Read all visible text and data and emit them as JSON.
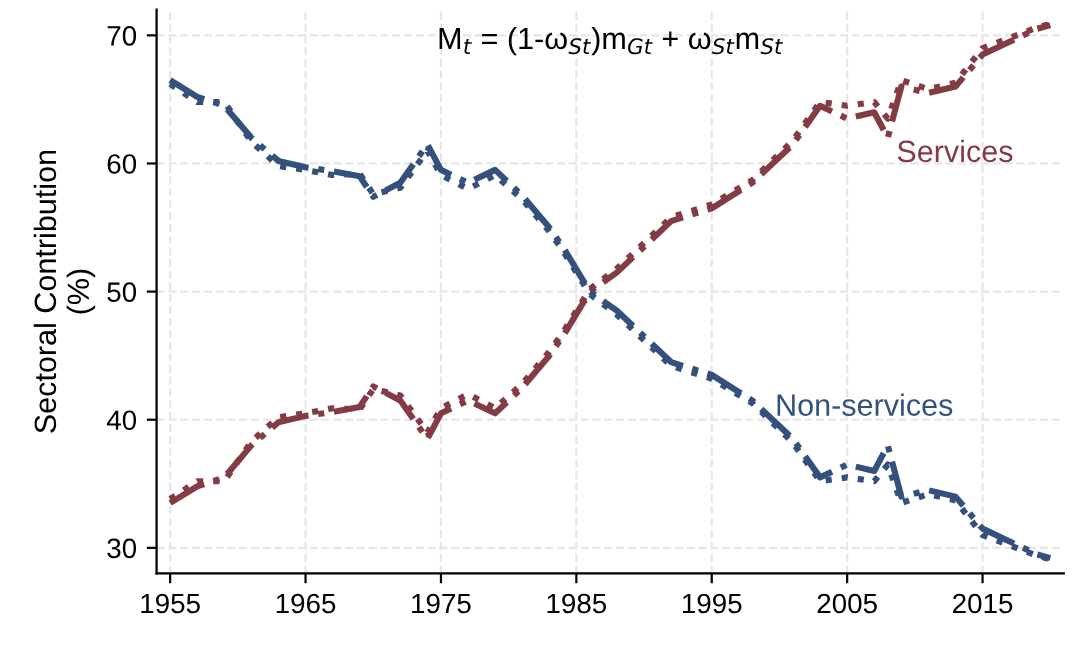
{
  "chart_data": {
    "type": "line",
    "ylabel": "Sectoral Contribution\n(%)",
    "annotations": [
      "M$_{t}$ = (1-ω$_{St}$)m$_{Gt}$ + ω$_{St}$m$_{St}$"
    ],
    "x": [
      1955,
      1957,
      1959,
      1961,
      1963,
      1965,
      1967,
      1969,
      1970,
      1972,
      1974,
      1975,
      1977,
      1979,
      1981,
      1983,
      1984,
      1986,
      1988,
      1990,
      1992,
      1995,
      1998,
      2001,
      2003,
      2005,
      2007,
      2008,
      2009,
      2011,
      2013,
      2015,
      2017,
      2019,
      2020
    ],
    "series": [
      {
        "name": "Services",
        "color": "#843c44",
        "line_style": "dashdot",
        "values": [
          33.5,
          34.8,
          35.5,
          38,
          39.8,
          40.3,
          40.6,
          41,
          42.6,
          41.5,
          38.5,
          40.5,
          41.5,
          40.5,
          42.5,
          45,
          46.5,
          50,
          51.5,
          53.5,
          55.5,
          56.5,
          58.5,
          61.5,
          64.5,
          63.5,
          64,
          62,
          66,
          65.5,
          66,
          68.5,
          69.5,
          70.5,
          70.8
        ]
      },
      {
        "color": "#843c44",
        "line_style": "dotted",
        "values": [
          33.8,
          35.2,
          35.2,
          38.3,
          40.2,
          40.5,
          40.9,
          40.8,
          42.4,
          41.9,
          39,
          40.9,
          42,
          40.9,
          42.8,
          45.3,
          46.8,
          50.2,
          51.8,
          53.8,
          55.8,
          56.8,
          58.7,
          61.8,
          64.8,
          64.5,
          64.8,
          63.5,
          66.5,
          65.8,
          66.3,
          69,
          69.8,
          70.6,
          70.9
        ]
      },
      {
        "name": "Non-services",
        "color": "#34507c",
        "line_style": "dashdot",
        "values": [
          66.5,
          65.2,
          64.5,
          62,
          60.2,
          59.7,
          59.4,
          59,
          57.4,
          58.5,
          61.5,
          59.5,
          58.5,
          59.5,
          57.5,
          55,
          53.5,
          50,
          48.5,
          46.5,
          44.5,
          43.5,
          41.5,
          38.5,
          35.5,
          36.5,
          36,
          38,
          34,
          34.5,
          34,
          31.5,
          30.5,
          29.5,
          29.2
        ]
      },
      {
        "color": "#34507c",
        "line_style": "dotted",
        "values": [
          66.2,
          64.8,
          64.8,
          61.7,
          59.8,
          59.5,
          59.1,
          59.2,
          57.6,
          58.1,
          61,
          59.1,
          58,
          59.1,
          57.2,
          54.7,
          53.2,
          49.8,
          48.2,
          46.2,
          44.2,
          43.2,
          41.3,
          38.2,
          35.2,
          35.5,
          35.2,
          36.5,
          33.5,
          34.2,
          33.7,
          31,
          30.2,
          29.4,
          29.1
        ]
      }
    ],
    "xlim": [
      1954,
      2021
    ],
    "xticks": [
      1955,
      1965,
      1975,
      1985,
      1995,
      2005,
      2015
    ],
    "ylim": [
      28,
      72
    ],
    "yticks": [
      30,
      40,
      50,
      60,
      70
    ],
    "grid": true,
    "legend": false
  }
}
